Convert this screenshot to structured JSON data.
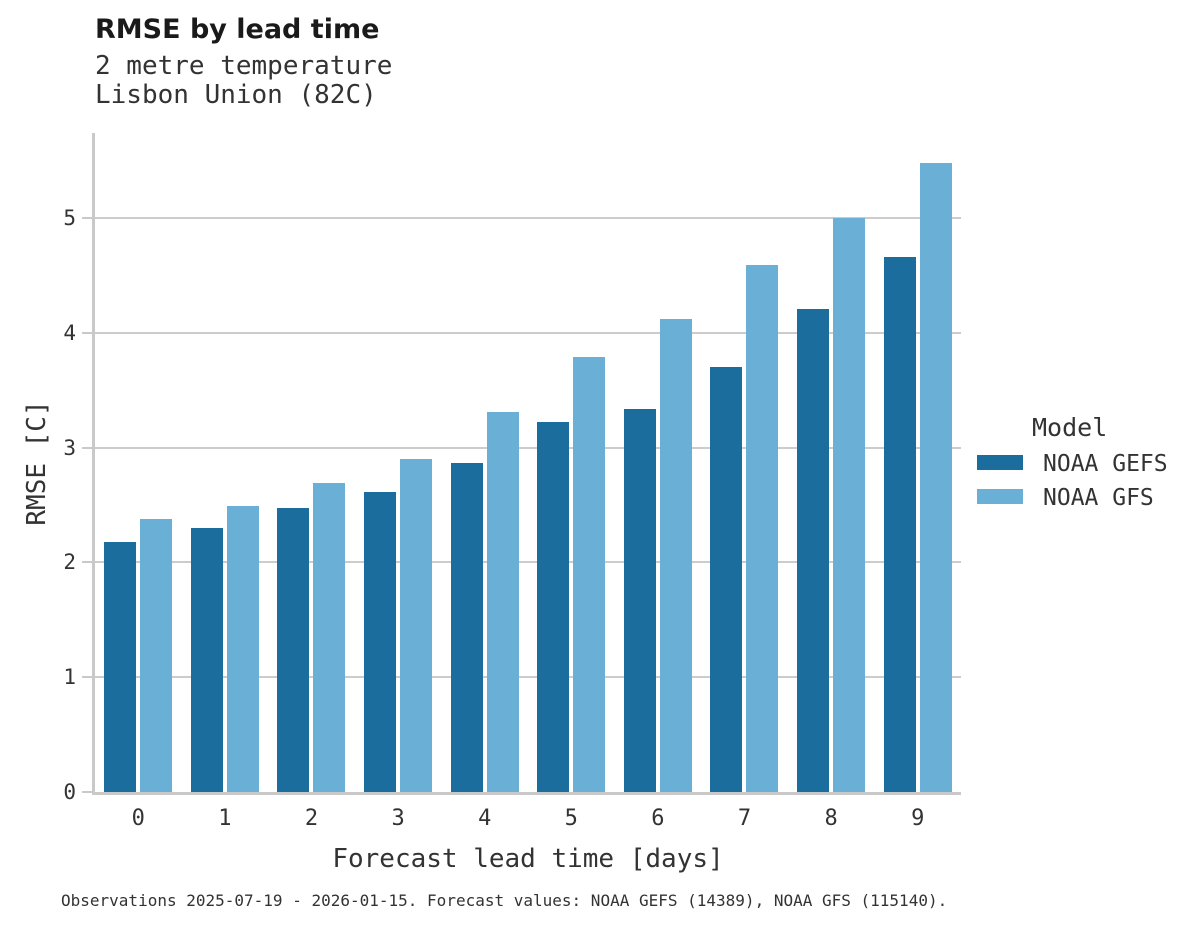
{
  "title": "RMSE by lead time",
  "subtitle_line1": "2 metre temperature",
  "subtitle_line2": "Lisbon Union (82C)",
  "caption": "Observations 2025-07-19 - 2026-01-15. Forecast values: NOAA GEFS (14389), NOAA GFS (115140).",
  "legend": {
    "title": "Model",
    "entries": [
      {
        "label": "NOAA GEFS",
        "color": "#1b6d9e"
      },
      {
        "label": "NOAA GFS",
        "color": "#69afd6"
      }
    ]
  },
  "colors": {
    "grid": "#cccccc",
    "axis": "#c9c9c9",
    "title_text": "#1a1a1a",
    "body_text": "#333333",
    "background": "#ffffff"
  },
  "chart_data": {
    "type": "bar",
    "title": "RMSE by lead time",
    "subtitle": "2 metre temperature, Lisbon Union (82C)",
    "xlabel": "Forecast lead time [days]",
    "ylabel": "RMSE [C]",
    "categories": [
      "0",
      "1",
      "2",
      "3",
      "4",
      "5",
      "6",
      "7",
      "8",
      "9"
    ],
    "series": [
      {
        "name": "NOAA GEFS",
        "color": "#1b6d9e",
        "values": [
          2.18,
          2.3,
          2.47,
          2.61,
          2.87,
          3.22,
          3.34,
          3.7,
          4.21,
          4.66
        ]
      },
      {
        "name": "NOAA GFS",
        "color": "#69afd6",
        "values": [
          2.38,
          2.49,
          2.69,
          2.9,
          3.31,
          3.79,
          4.12,
          4.59,
          5.0,
          5.48
        ]
      }
    ],
    "ylim": [
      0,
      5.74
    ],
    "yticks": [
      0,
      1,
      2,
      3,
      4,
      5
    ],
    "grid": "horizontal",
    "legend_position": "right",
    "legend_title": "Model"
  }
}
